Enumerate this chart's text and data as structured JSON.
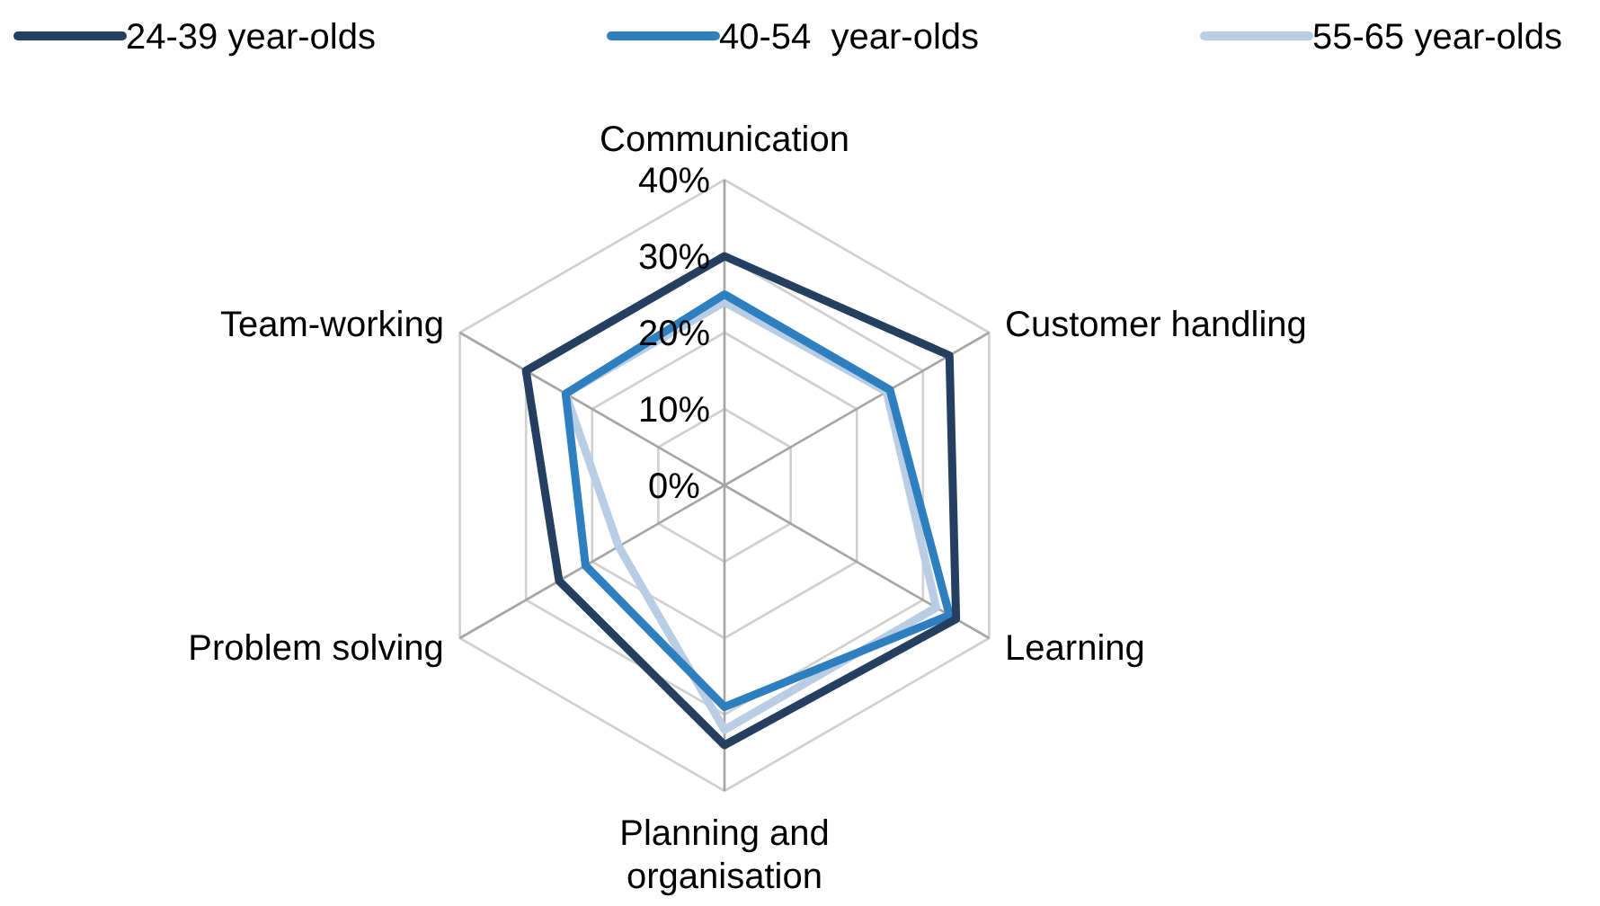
{
  "chart_data": {
    "type": "radar",
    "categories": [
      "Communication",
      "Customer handling",
      "Learning",
      "Planning and\norganisation",
      "Problem solving",
      "Team-working"
    ],
    "series": [
      {
        "name": "24-39 year-olds",
        "color": "#243f60",
        "values": [
          30,
          34,
          35,
          34,
          25,
          30
        ]
      },
      {
        "name": "40-54  year-olds",
        "color": "#2e7fc0",
        "values": [
          25,
          25,
          34,
          29,
          21,
          24
        ]
      },
      {
        "name": "55-65 year-olds",
        "color": "#b9cde5",
        "values": [
          24,
          24.5,
          32,
          32,
          16,
          24
        ]
      }
    ],
    "ylim": [
      0,
      40
    ],
    "yticks": [
      {
        "value": 0,
        "label": "0%"
      },
      {
        "value": 10,
        "label": "10%"
      },
      {
        "value": 20,
        "label": "20%"
      },
      {
        "value": 30,
        "label": "30%"
      },
      {
        "value": 40,
        "label": "40%"
      }
    ],
    "grid": true,
    "legend": "top",
    "line_style": "solid",
    "marker": "none"
  }
}
